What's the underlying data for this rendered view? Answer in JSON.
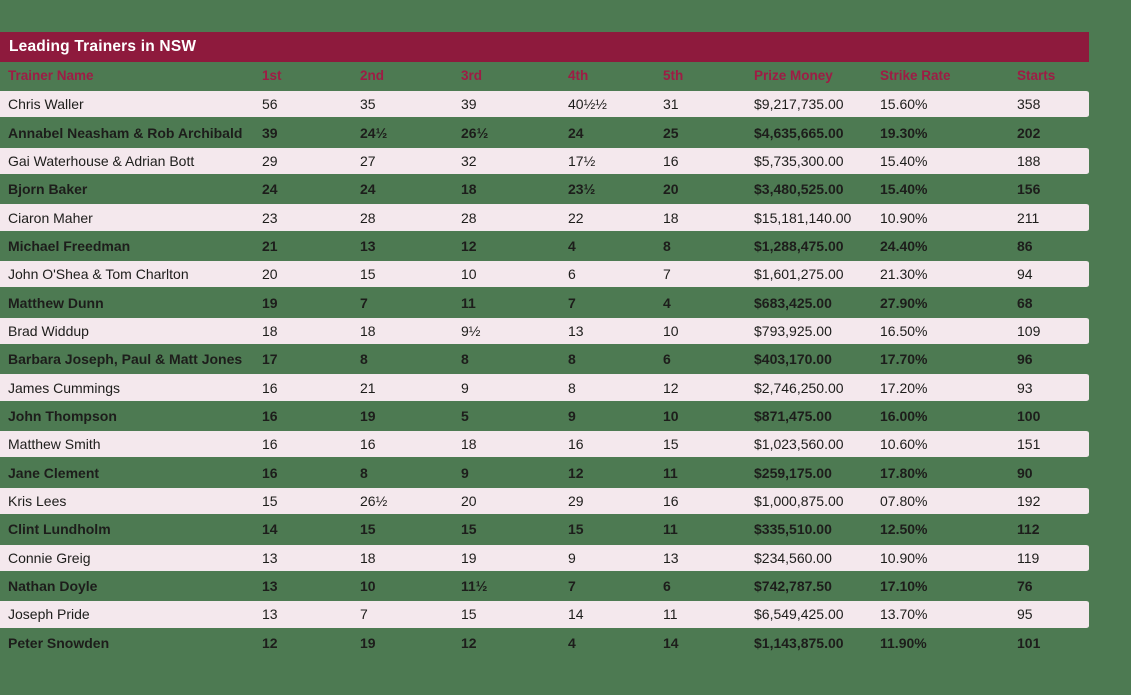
{
  "chart_data": {
    "type": "table",
    "title": "Leading Trainers in NSW",
    "columns": [
      "Trainer Name",
      "1st",
      "2nd",
      "3rd",
      "4th",
      "5th",
      "Prize Money",
      "Strike Rate",
      "Starts"
    ],
    "rows": [
      [
        "Chris Waller",
        "56",
        "35",
        "39",
        "40½½",
        "31",
        "$9,217,735.00",
        "15.60%",
        "358"
      ],
      [
        "Annabel Neasham & Rob Archibald",
        "39",
        "24½",
        "26½",
        "24",
        "25",
        "$4,635,665.00",
        "19.30%",
        "202"
      ],
      [
        "Gai Waterhouse & Adrian Bott",
        "29",
        "27",
        "32",
        "17½",
        "16",
        "$5,735,300.00",
        "15.40%",
        "188"
      ],
      [
        "Bjorn Baker",
        "24",
        "24",
        "18",
        "23½",
        "20",
        "$3,480,525.00",
        "15.40%",
        "156"
      ],
      [
        "Ciaron Maher",
        "23",
        "28",
        "28",
        "22",
        "18",
        "$15,181,140.00",
        "10.90%",
        "211"
      ],
      [
        "Michael Freedman",
        "21",
        "13",
        "12",
        "4",
        "8",
        "$1,288,475.00",
        "24.40%",
        "86"
      ],
      [
        "John O'Shea & Tom Charlton",
        "20",
        "15",
        "10",
        "6",
        "7",
        "$1,601,275.00",
        "21.30%",
        "94"
      ],
      [
        "Matthew Dunn",
        "19",
        "7",
        "11",
        "7",
        "4",
        "$683,425.00",
        "27.90%",
        "68"
      ],
      [
        "Brad Widdup",
        "18",
        "18",
        "9½",
        "13",
        "10",
        "$793,925.00",
        "16.50%",
        "109"
      ],
      [
        "Barbara Joseph, Paul & Matt Jones",
        "17",
        "8",
        "8",
        "8",
        "6",
        "$403,170.00",
        "17.70%",
        "96"
      ],
      [
        "James Cummings",
        "16",
        "21",
        "9",
        "8",
        "12",
        "$2,746,250.00",
        "17.20%",
        "93"
      ],
      [
        "John Thompson",
        "16",
        "19",
        "5",
        "9",
        "10",
        "$871,475.00",
        "16.00%",
        "100"
      ],
      [
        "Matthew Smith",
        "16",
        "16",
        "18",
        "16",
        "15",
        "$1,023,560.00",
        "10.60%",
        "151"
      ],
      [
        "Jane Clement",
        "16",
        "8",
        "9",
        "12",
        "11",
        "$259,175.00",
        "17.80%",
        "90"
      ],
      [
        "Kris Lees",
        "15",
        "26½",
        "20",
        "29",
        "16",
        "$1,000,875.00",
        "07.80%",
        "192"
      ],
      [
        "Clint Lundholm",
        "14",
        "15",
        "15",
        "15",
        "11",
        "$335,510.00",
        "12.50%",
        "112"
      ],
      [
        "Connie Greig",
        "13",
        "18",
        "19",
        "9",
        "13",
        "$234,560.00",
        "10.90%",
        "119"
      ],
      [
        "Nathan Doyle",
        "13",
        "10",
        "11½",
        "7",
        "6",
        "$742,787.50",
        "17.10%",
        "76"
      ],
      [
        "Joseph Pride",
        "13",
        "7",
        "15",
        "14",
        "11",
        "$6,549,425.00",
        "13.70%",
        "95"
      ],
      [
        "Peter Snowden",
        "12",
        "19",
        "12",
        "4",
        "14",
        "$1,143,875.00",
        "11.90%",
        "101"
      ]
    ]
  },
  "colors": {
    "page_background": "#4d7a52",
    "title_bar_background": "#8e1a3d",
    "title_text": "#ffffff",
    "header_text": "#9e1c45",
    "row_alt_background": "#f4e8ed",
    "row_text": "#1d1d1b"
  }
}
